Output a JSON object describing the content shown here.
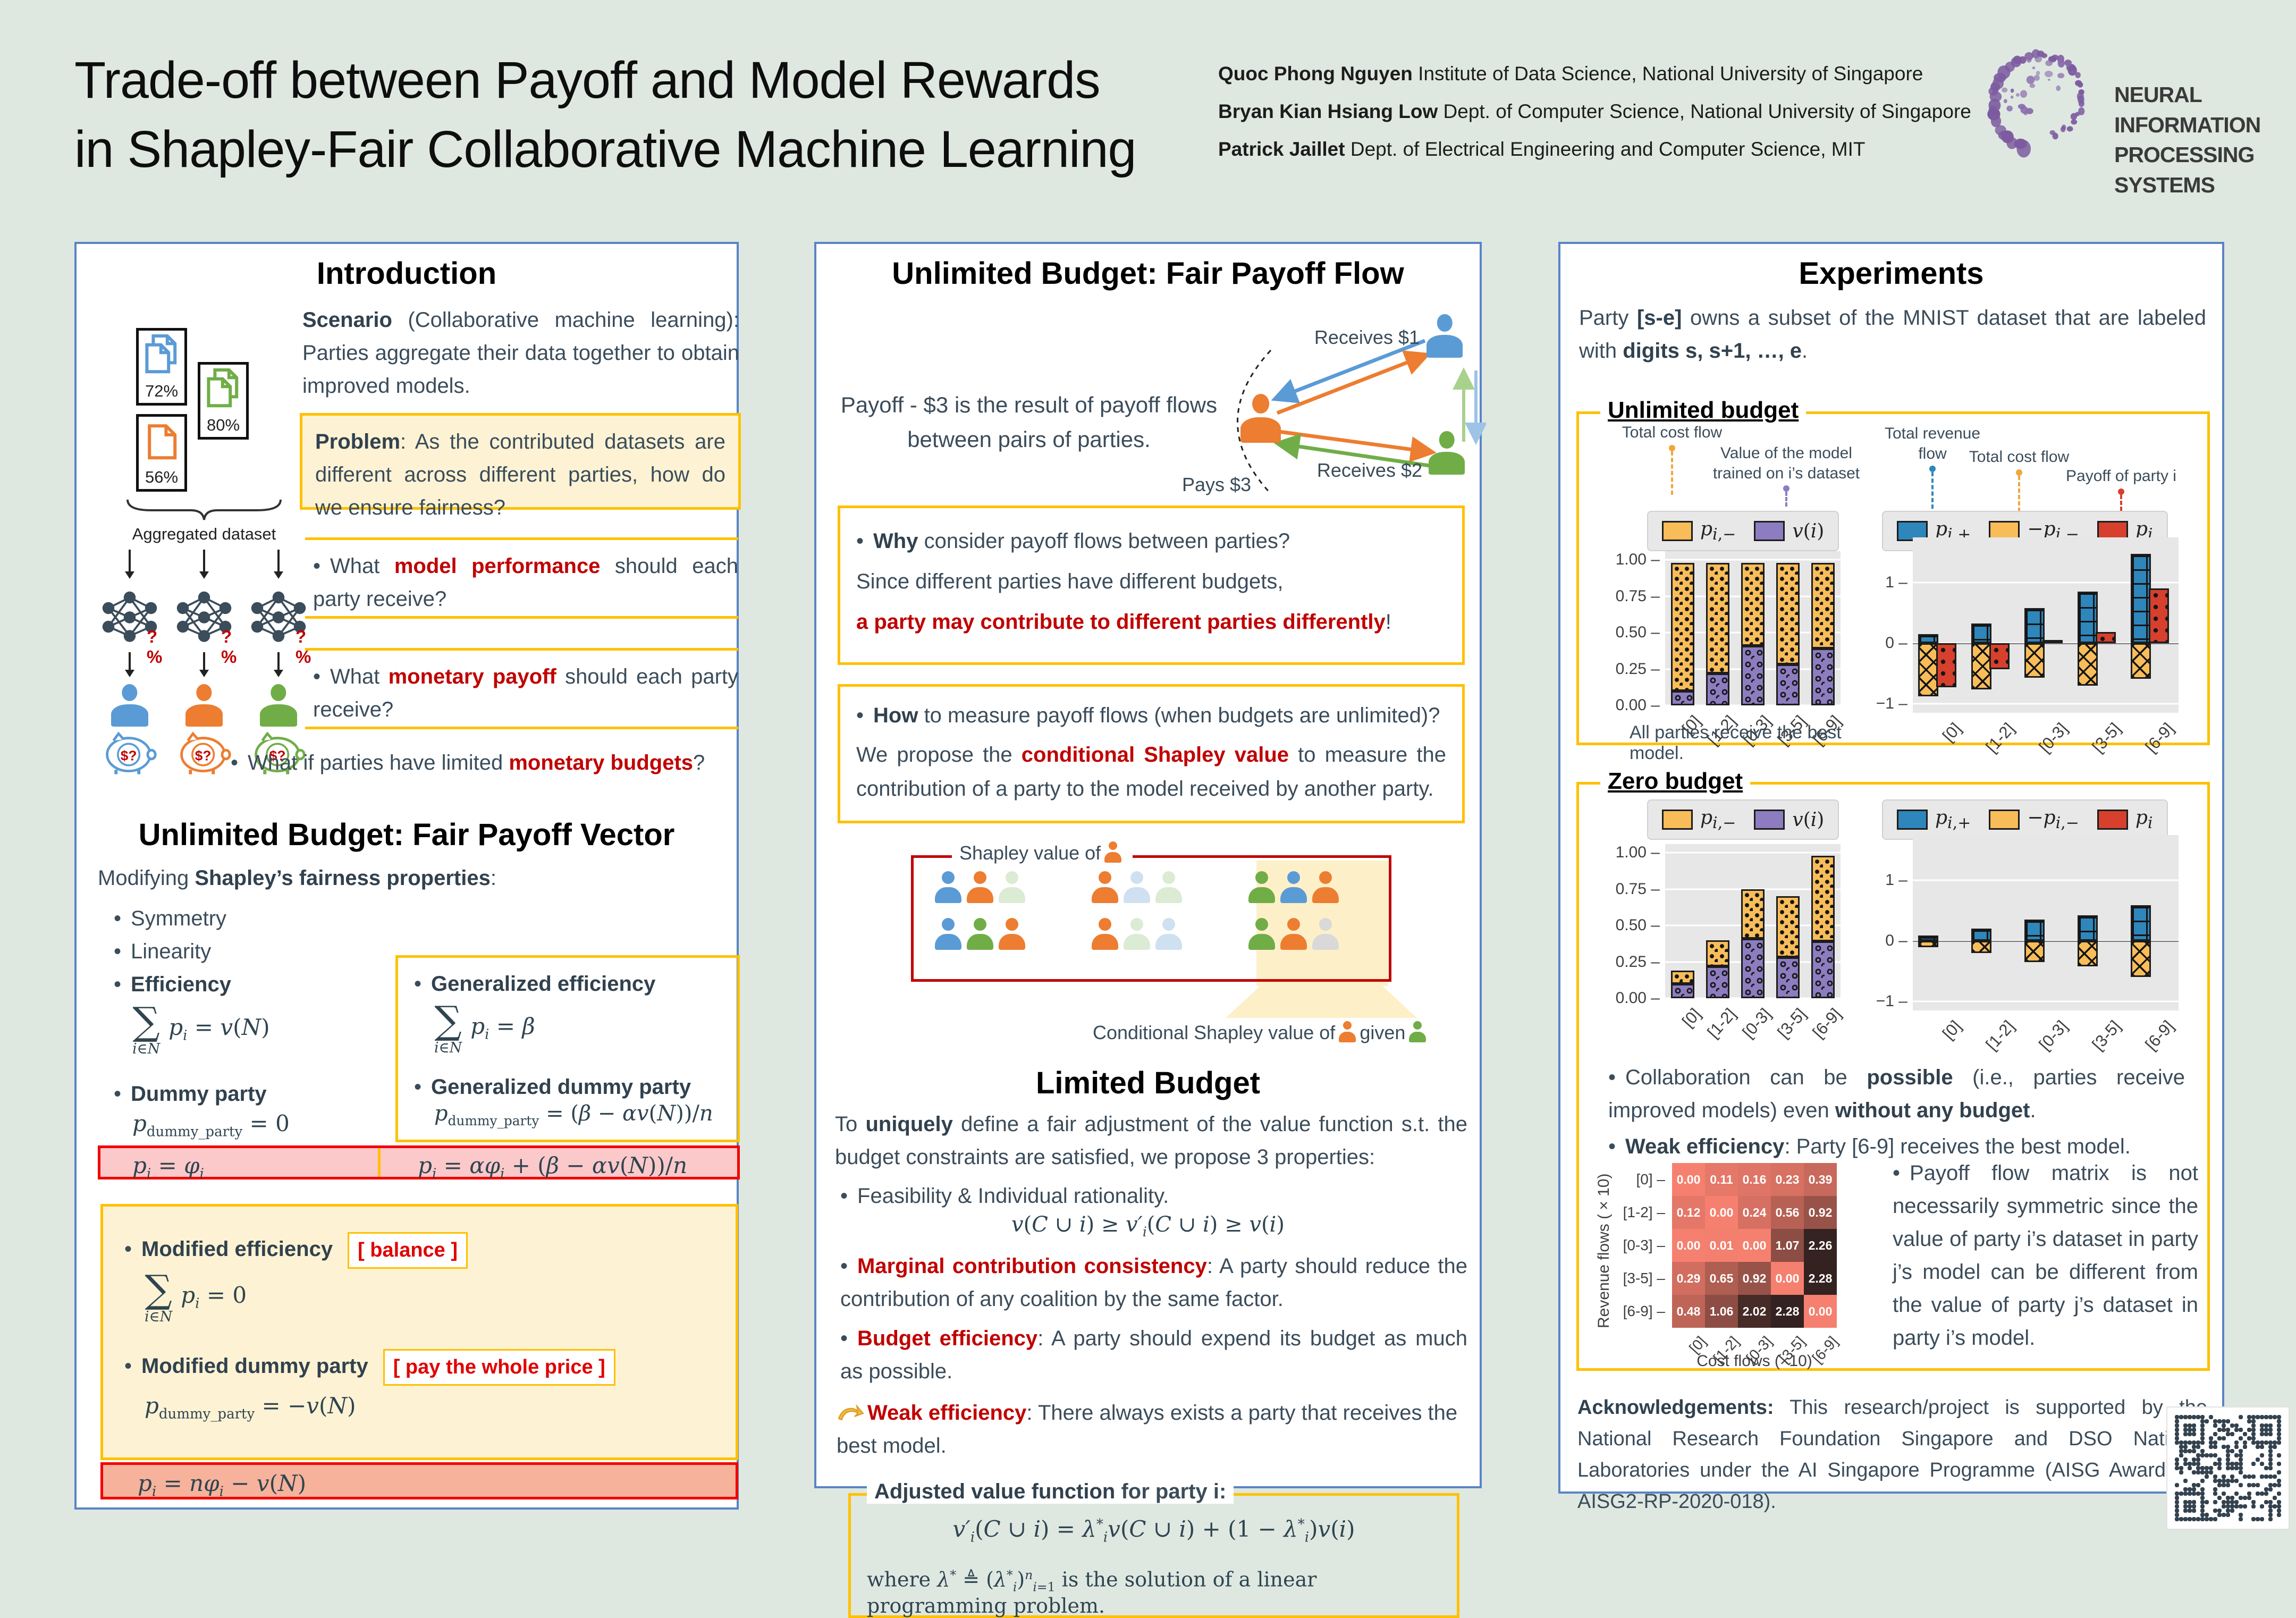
{
  "colors": {
    "party_blue": "#5b9bd5",
    "party_orange": "#ed7d31",
    "party_green": "#70ad47",
    "bar_orange": "#f8bd59",
    "bar_purple": "#8d7dc0",
    "bar_blue": "#2e86ba",
    "bar_red": "#d6402d",
    "accent_yellow": "#ffc000",
    "red_text": "#c00000",
    "panel_border": "#5b84c4"
  },
  "header": {
    "title_line1": "Trade-off between Payoff and Model Rewards",
    "title_line2": "in Shapley-Fair Collaborative Machine Learning",
    "authors": [
      {
        "name": "Quoc Phong Nguyen",
        "affiliation": "Institute of Data Science, National University of Singapore"
      },
      {
        "name": "Bryan Kian Hsiang Low",
        "affiliation": "Dept. of Computer Science, National University of Singapore"
      },
      {
        "name": "Patrick Jaillet",
        "affiliation": "Dept. of Electrical Engineering and Computer Science, MIT"
      }
    ],
    "logo_line1": "NEURAL INFORMATION",
    "logo_line2": "PROCESSING SYSTEMS"
  },
  "intro": {
    "heading": "Introduction",
    "scenario_html": "<b>Scenario</b> (Collaborative machine learning): Parties aggregate their data together to obtain improved models.",
    "problem_html": "<b>Problem</b>: As the contributed datasets are different across different parties, how do we ensure fairness?",
    "docs": [
      {
        "pct": "72%"
      },
      {
        "pct": "80%"
      },
      {
        "pct": "56%"
      }
    ],
    "aggregated_label": "Aggregated dataset",
    "net_label": "?%",
    "piggy_label": "$?",
    "bullet1_html": "What <b class='red'>model performance</b> should each party receive?",
    "bullet2_html": "What <b class='red'>monetary payoff</b> should each party receive?",
    "bullet3_html": "What if parties have limited <b class='red'>monetary budgets</b>?"
  },
  "payoff_vector": {
    "heading": "Unlimited Budget: Fair Payoff Vector",
    "modifying_html": "Modifying <b>Shapley’s fairness properties</b>:",
    "b_symmetry": "Symmetry",
    "b_linearity": "Linearity",
    "b_efficiency": "Efficiency",
    "b_dummy": "Dummy party",
    "b_gen_efficiency": "Generalized efficiency",
    "b_gen_dummy": "Generalized dummy party",
    "b_mod_efficiency": "Modified efficiency",
    "b_mod_dummy": "Modified dummy party",
    "tag_balance": "[ balance ]",
    "tag_pay": "[ pay the whole price ]",
    "f_sum_v": "<span class='bs'><span class='sg'>∑</span><span class='lm'><i>i</i>∈<i>N</i></span></span><span><i>p</i><sub><i>i</i></sub> = <i>v</i>(<i>N</i>)</span>",
    "f_dummy0": "<i>p</i><sub>dummy_party</sub> = 0",
    "f_sum_beta": "<span class='bs'><span class='sg'>∑</span><span class='lm'><i>i</i>∈<i>N</i></span></span><span><i>p</i><sub><i>i</i></sub> = <i>β</i></span>",
    "f_dummy_gen": "<i>p</i><sub>dummy_party</sub> = (<i>β</i> − <i>αv</i>(<i>N</i>))/<i>n</i>",
    "f_row1_left": "<i>p</i><sub><i>i</i></sub> = <i>φ</i><sub><i>i</i></sub>",
    "f_row1_right": "<i>p</i><sub><i>i</i></sub> = <i>αφ</i><sub><i>i</i></sub> + (<i>β</i> − <i>αv</i>(<i>N</i>))/<i>n</i>",
    "f_sum_0": "<span class='bs'><span class='sg'>∑</span><span class='lm'><i>i</i>∈<i>N</i></span></span><span><i>p</i><sub><i>i</i></sub> = 0</span>",
    "f_dummy_neg": "<i>p</i><sub>dummy_party</sub> = −<i>v</i>(<i>N</i>)",
    "f_row_bottom": "<i>p</i><sub><i>i</i></sub> = <i>nφ</i><sub><i>i</i></sub> − <i>v</i>(<i>N</i>)"
  },
  "payoff_flow": {
    "heading": "Unlimited Budget: Fair Payoff Flow",
    "caption_line1": "Payoff - $3 is the result of payoff flows",
    "caption_line2": "between pairs of parties.",
    "label_receives1": "Receives $1",
    "label_receives2": "Receives $2",
    "label_pays": "Pays $3",
    "why_line1_html": "<b>Why</b> consider payoff flows between parties?",
    "why_line2_html": "Since different parties have different budgets,",
    "why_line3_html": "<b class='red'>a party may contribute to different parties differently</b>!",
    "how_line1_html": "<b>How</b> to measure payoff flows (when budgets are unlimited)?",
    "how_line2_html": "We propose the <b class='red'>conditional Shapley value</b> to measure the contribution of a party to the model received by another party.",
    "shapley": {
      "label_prefix": "Shapley value of",
      "cond_prefix": "Conditional Shapley value of",
      "cond_given": "given",
      "groups": [
        [
          "blue",
          "orange",
          "green_faded"
        ],
        [
          "orange",
          "blue_faded",
          "green_faded"
        ],
        [
          "green",
          "blue",
          "orange"
        ],
        [
          "blue",
          "green",
          "orange"
        ],
        [
          "orange",
          "green_faded",
          "blue_faded"
        ],
        [
          "green",
          "orange",
          "gray_faded"
        ]
      ]
    }
  },
  "limited_budget": {
    "heading": "Limited Budget",
    "intro_html": "To <b>uniquely</b> define a fair adjustment of the value function s.t. the budget constraints are satisfied, we propose 3 properties:",
    "b1_html": "Feasibility &amp; Individual rationality.",
    "f_feasibility": "<i>v</i>(<i>C</i> ∪ <i>i</i>) ≥ <i>v′</i><sub><i>i</i></sub>(<i>C</i> ∪ <i>i</i>) ≥ <i>v</i>(<i>i</i>)",
    "b2_html": "<b class='red'>Marginal contribution consistency</b>: A party should reduce the contribution of any coalition by the same factor.",
    "b3_html": "<b class='red'>Budget efficiency</b>: A party should expend its budget as much as possible.",
    "weak_html": "<b class='red'>Weak efficiency</b>: There always exists a party that receives the best model.",
    "adjusted_label_html": "<b>Adjusted value function</b> for party i:",
    "f_adjusted": "<i>v′</i><sub><i>i</i></sub>(<i>C</i> ∪ <i>i</i>) = <i>λ</i><sup>*</sup><sub><i>i</i></sub><i>v</i>(<i>C</i> ∪ <i>i</i>) + (1 − <i>λ</i><sup>*</sup><sub><i>i</i></sub>)<i>v</i>(<i>i</i>)",
    "f_where": "where <i>λ</i><sup>*</sup> ≜ (<i>λ</i><sup>*</sup><sub><i>i</i></sub>)<sup><i>n</i></sup><sub><i>i</i>=1</sub> is the solution of a linear programming problem."
  },
  "experiments": {
    "heading": "Experiments",
    "intro_html": "Party <b>[s-e]</b> owns a subset of the MNIST dataset that are labeled with <b>digits s, s+1, …, e</b>.",
    "unlimited_label": "Unlimited budget",
    "zero_label": "Zero budget",
    "annotations": [
      {
        "text": "Total cost flow",
        "color": "#f0a63a"
      },
      {
        "text": "Value of the model trained on i’s dataset",
        "color": "#8d7dc0"
      },
      {
        "text": "Total revenue flow",
        "color": "#2e86ba"
      },
      {
        "text": "Total cost flow",
        "color": "#f0a63a"
      },
      {
        "text": "Payoff of party i",
        "color": "#d6402d"
      }
    ],
    "legends": {
      "left": [
        {
          "swatch": "orange",
          "html": "<i>p</i><sub><i>i</i>,−</sub>"
        },
        {
          "swatch": "purple",
          "html": "<i>v</i>(<i>i</i>)"
        }
      ],
      "right": [
        {
          "swatch": "blue",
          "html": "<i>p</i><sub><i>i</i>,+</sub>"
        },
        {
          "swatch": "yellow",
          "html": "−<i>p</i><sub><i>i</i>,−</sub>"
        },
        {
          "swatch": "red",
          "html": "<i>p</i><sub><i>i</i></sub>"
        }
      ]
    },
    "unlimited_caption": "All parties receive the best model.",
    "bullet1_html": "Collaboration can be <b>possible</b> (i.e., parties receive improved models) even <b>without any budget</b>.",
    "bullet2_html": "<b>Weak efficiency</b>: Party [6-9] receives the best model.",
    "matrix_para_html": "Payoff flow matrix is not necessarily symmetric since the value of party i’s dataset in party j’s model can be different from the value of party j’s dataset in party i’s model.",
    "ack_html": "<b>Acknowledgements:</b> This research/project is supported by the National Research Foundation Singapore and DSO National Laboratories under the AI Singapore Programme (AISG Award No: AISG2-RP-2020-018)."
  },
  "chart_data": [
    {
      "id": "unlimited-left",
      "type": "bar-stacked",
      "title": "Unlimited budget: payoff decomposition",
      "categories": [
        "[0]",
        "[1-2]",
        "[0-3]",
        "[3-5]",
        "[6-9]"
      ],
      "series": [
        {
          "name": "v(i)",
          "color": "purple",
          "values": [
            0.1,
            0.22,
            0.41,
            0.28,
            0.39
          ]
        },
        {
          "name": "p_i_minus",
          "color": "orange",
          "values": [
            0.88,
            0.76,
            0.57,
            0.7,
            0.59
          ]
        }
      ],
      "ylim": [
        0,
        1.06
      ],
      "yticks": [
        {
          "v": 0,
          "l": "0.00"
        },
        {
          "v": 0.25,
          "l": "0.25"
        },
        {
          "v": 0.5,
          "l": "0.50"
        },
        {
          "v": 0.75,
          "l": "0.75"
        },
        {
          "v": 1,
          "l": "1.00"
        }
      ],
      "caption": "All parties receive the best model."
    },
    {
      "id": "unlimited-right",
      "type": "bar-grouped",
      "title": "Unlimited budget: payoff flows",
      "categories": [
        "[0]",
        "[1-2]",
        "[0-3]",
        "[3-5]",
        "[6-9]"
      ],
      "series": [
        {
          "name": "p_i_plus",
          "color": "blue",
          "values": [
            0.15,
            0.33,
            0.58,
            0.85,
            1.48
          ]
        },
        {
          "name": "neg_p_i_minus",
          "color": "yellow",
          "values": [
            -0.88,
            -0.76,
            -0.57,
            -0.7,
            -0.59
          ]
        },
        {
          "name": "p_i",
          "color": "red",
          "values": [
            -0.73,
            -0.43,
            0.05,
            0.19,
            0.91
          ]
        }
      ],
      "ylim": [
        -1.15,
        1.75
      ],
      "yticks": [
        {
          "v": 1,
          "l": "1"
        },
        {
          "v": 0,
          "l": "0"
        },
        {
          "v": -1,
          "l": "−1"
        }
      ]
    },
    {
      "id": "zero-left",
      "type": "bar-stacked",
      "title": "Zero budget: payoff decomposition",
      "categories": [
        "[0]",
        "[1-2]",
        "[0-3]",
        "[3-5]",
        "[6-9]"
      ],
      "series": [
        {
          "name": "v(i)",
          "color": "purple",
          "values": [
            0.1,
            0.22,
            0.41,
            0.28,
            0.39
          ]
        },
        {
          "name": "p_i_minus",
          "color": "orange",
          "values": [
            0.09,
            0.18,
            0.34,
            0.42,
            0.59
          ]
        }
      ],
      "ylim": [
        0,
        1.06
      ],
      "yticks": [
        {
          "v": 0,
          "l": "0.00"
        },
        {
          "v": 0.25,
          "l": "0.25"
        },
        {
          "v": 0.5,
          "l": "0.50"
        },
        {
          "v": 0.75,
          "l": "0.75"
        },
        {
          "v": 1,
          "l": "1.00"
        }
      ]
    },
    {
      "id": "zero-right",
      "type": "bar-grouped",
      "title": "Zero budget: payoff flows",
      "categories": [
        "[0]",
        "[1-2]",
        "[0-3]",
        "[3-5]",
        "[6-9]"
      ],
      "series": [
        {
          "name": "p_i_plus",
          "color": "blue",
          "values": [
            0.09,
            0.2,
            0.35,
            0.42,
            0.59
          ]
        },
        {
          "name": "neg_p_i_minus",
          "color": "yellow",
          "values": [
            -0.1,
            -0.2,
            -0.35,
            -0.42,
            -0.6
          ]
        },
        {
          "name": "p_i",
          "color": "red",
          "values": [
            0,
            0,
            0,
            0,
            0
          ]
        }
      ],
      "ylim": [
        -1.15,
        1.75
      ],
      "yticks": [
        {
          "v": 1,
          "l": "1"
        },
        {
          "v": 0,
          "l": "0"
        },
        {
          "v": -1,
          "l": "−1"
        }
      ]
    },
    {
      "id": "flow-matrix",
      "type": "heatmap",
      "title": "Payoff flow matrix",
      "rows": [
        "[0]",
        "[1-2]",
        "[0-3]",
        "[3-5]",
        "[6-9]"
      ],
      "cols": [
        "[0]",
        "[1-2]",
        "[0-3]",
        "[3-5]",
        "[6-9]"
      ],
      "values": [
        [
          0.0,
          0.11,
          0.16,
          0.23,
          0.39
        ],
        [
          0.12,
          0.0,
          0.24,
          0.56,
          0.92
        ],
        [
          0.0,
          0.01,
          0.0,
          1.07,
          2.26
        ],
        [
          0.29,
          0.65,
          0.92,
          0.0,
          2.28
        ],
        [
          0.48,
          1.06,
          2.02,
          2.28,
          0.0
        ]
      ],
      "vmax": 2.28,
      "xlabel": "Cost flows (×10)",
      "ylabel": "Revenue flows (×10)"
    }
  ]
}
